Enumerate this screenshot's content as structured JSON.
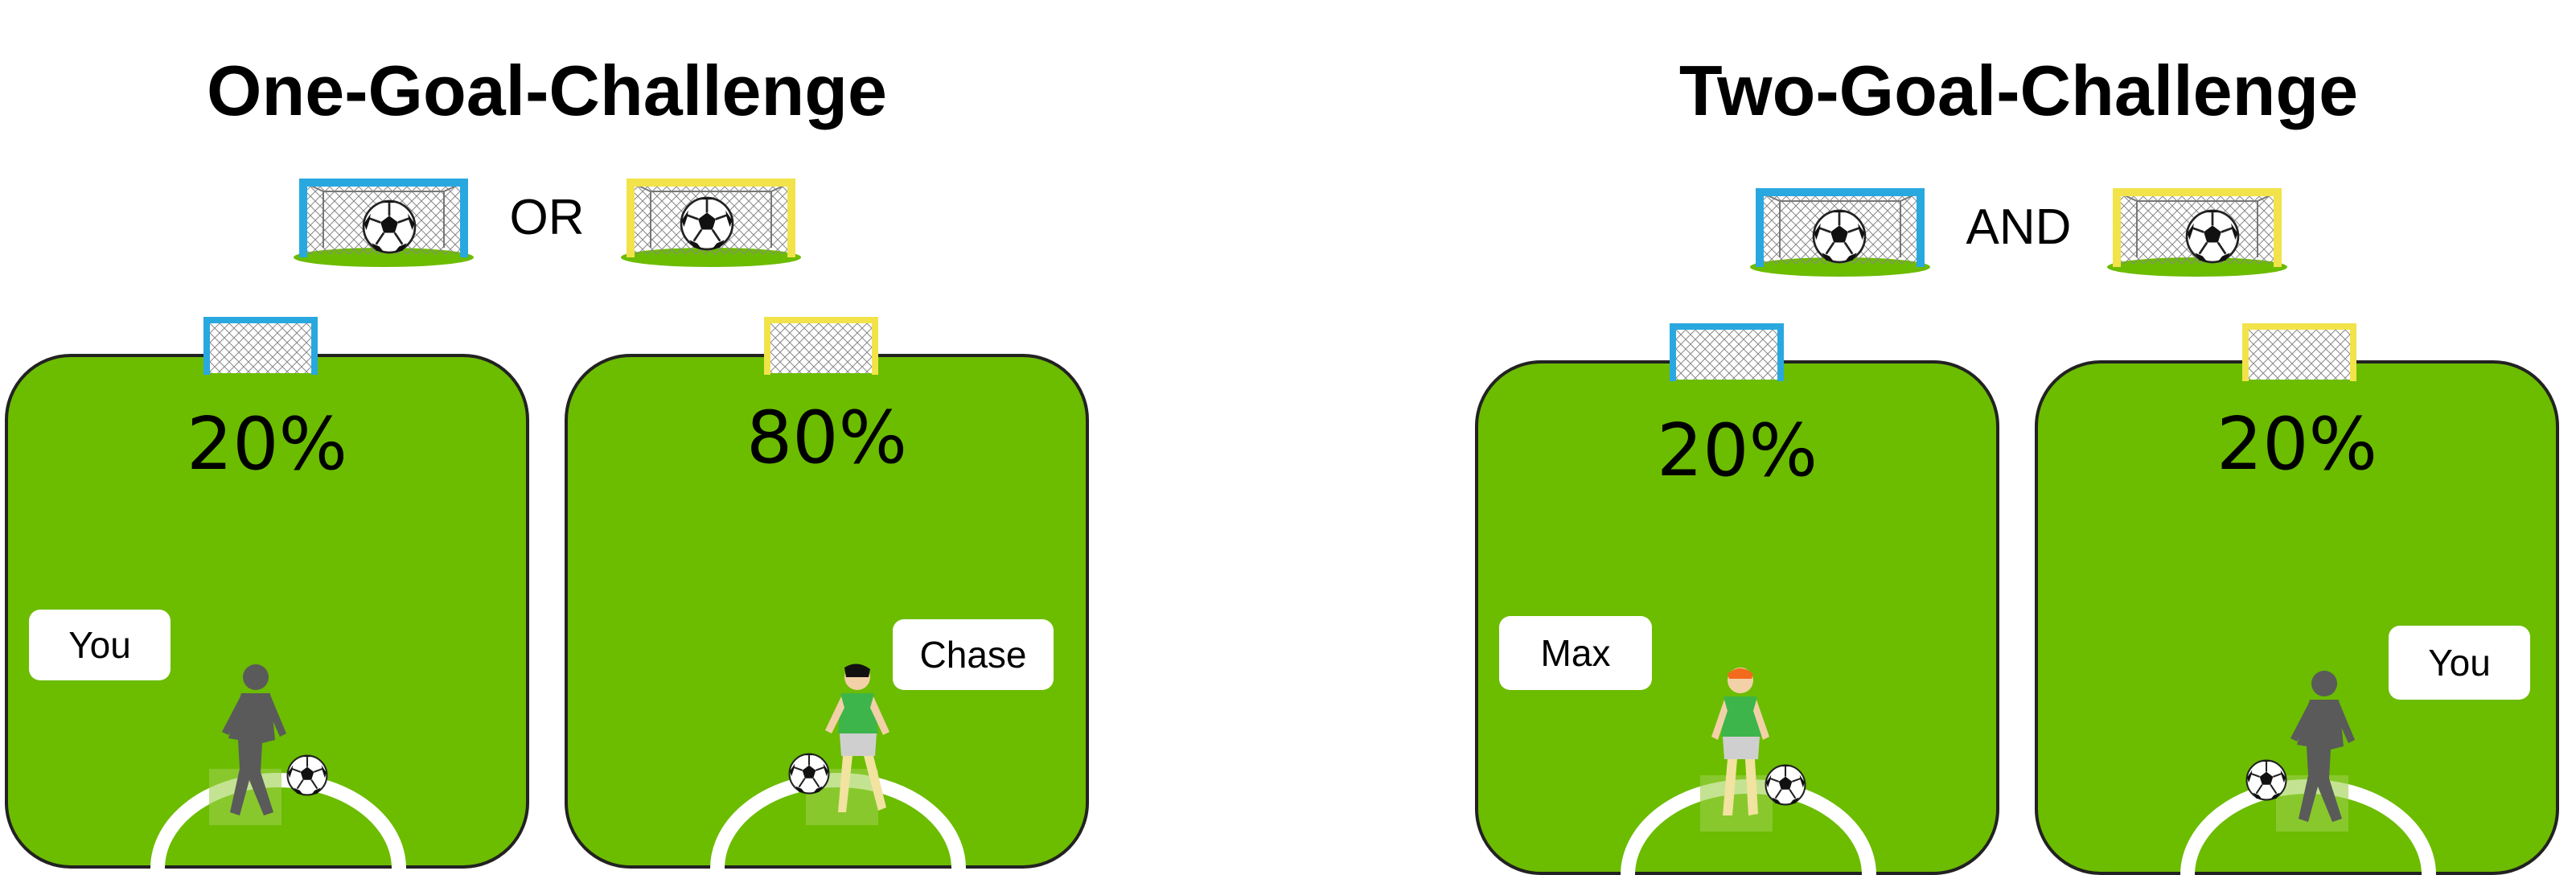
{
  "one_goal": {
    "title": "One-Goal-Challenge",
    "connector": "OR",
    "fields": [
      {
        "percent": "20%",
        "player_name": "You",
        "goal_color": "#29a8e0",
        "player": "silhouette-player"
      },
      {
        "percent": "80%",
        "player_name": "Chase",
        "goal_color": "#f2e34a",
        "player": "green-shirt-player"
      }
    ]
  },
  "two_goal": {
    "title": "Two-Goal-Challenge",
    "connector": "AND",
    "fields": [
      {
        "percent": "20%",
        "player_name": "Max",
        "goal_color": "#29a8e0",
        "player": "green-shirt-player-orange-hair"
      },
      {
        "percent": "20%",
        "player_name": "You",
        "goal_color": "#f2e34a",
        "player": "silhouette-player"
      }
    ]
  },
  "colors": {
    "field_green": "#6cbc00",
    "goal_blue": "#29a8e0",
    "goal_yellow": "#f2e34a",
    "silhouette": "#5a5a5a",
    "shirt_green": "#3db54a"
  }
}
